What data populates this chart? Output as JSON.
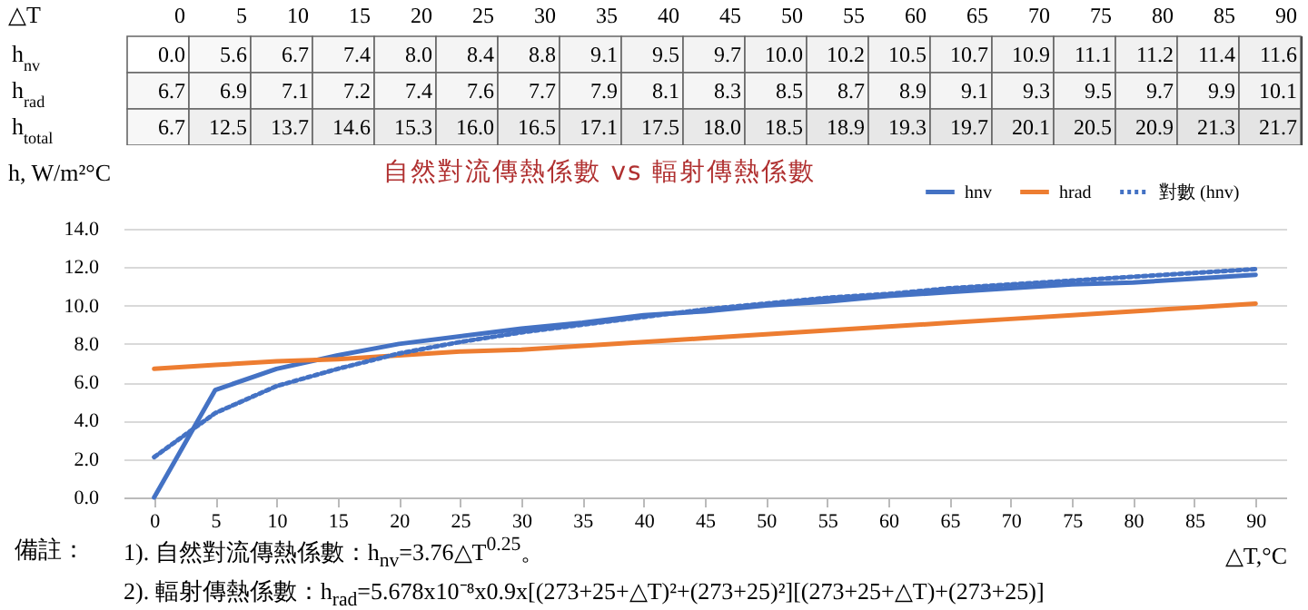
{
  "chart_data": [
    {
      "type": "heatmap",
      "xlabel": "△T",
      "data_labels": true,
      "categories": [
        "0",
        "5",
        "10",
        "15",
        "20",
        "25",
        "30",
        "35",
        "40",
        "45",
        "50",
        "55",
        "60",
        "65",
        "70",
        "75",
        "80",
        "85",
        "90"
      ],
      "y_categories": [
        "h$_{nv}$",
        "h$_{rad}$",
        "h$_{total}$"
      ],
      "cells": [
        [
          0.0,
          5.6,
          6.7,
          7.4,
          8.0,
          8.4,
          8.8,
          9.1,
          9.5,
          9.7,
          10.0,
          10.2,
          10.5,
          10.7,
          10.9,
          11.1,
          11.2,
          11.4,
          11.6
        ],
        [
          6.7,
          6.9,
          7.1,
          7.2,
          7.4,
          7.6,
          7.7,
          7.9,
          8.1,
          8.3,
          8.5,
          8.7,
          8.9,
          9.1,
          9.3,
          9.5,
          9.7,
          9.9,
          10.1
        ],
        [
          6.7,
          12.5,
          13.7,
          14.6,
          15.3,
          16.0,
          16.5,
          17.1,
          17.5,
          18.0,
          18.5,
          18.9,
          19.3,
          19.7,
          20.1,
          20.5,
          20.9,
          21.3,
          21.7
        ]
      ],
      "cell_labels": [
        [
          "0.0",
          "5.6",
          "6.7",
          "7.4",
          "8.0",
          "8.4",
          "8.8",
          "9.1",
          "9.5",
          "9.7",
          "10.0",
          "10.2",
          "10.5",
          "10.7",
          "10.9",
          "11.1",
          "11.2",
          "11.4",
          "11.6"
        ],
        [
          "6.7",
          "6.9",
          "7.1",
          "7.2",
          "7.4",
          "7.6",
          "7.7",
          "7.9",
          "8.1",
          "8.3",
          "8.5",
          "8.7",
          "8.9",
          "9.1",
          "9.3",
          "9.5",
          "9.7",
          "9.9",
          "10.1"
        ],
        [
          "6.7",
          "12.5",
          "13.7",
          "14.6",
          "15.3",
          "16.0",
          "16.5",
          "17.1",
          "17.5",
          "18.0",
          "18.5",
          "18.9",
          "19.3",
          "19.7",
          "20.1",
          "20.5",
          "20.9",
          "21.3",
          "21.7"
        ]
      ]
    },
    {
      "type": "line",
      "title": "自然對流傳熱係數 vs 輻射傳熱係數",
      "xlabel": "△T,°C",
      "ylabel": "h, W/m²°C",
      "categories": [
        "0",
        "5",
        "10",
        "15",
        "20",
        "25",
        "30",
        "35",
        "40",
        "45",
        "50",
        "55",
        "60",
        "65",
        "70",
        "75",
        "80",
        "85",
        "90"
      ],
      "ylim": [
        0,
        14
      ],
      "yticks": [
        {
          "value": 0,
          "label": "0.0"
        },
        {
          "value": 2,
          "label": "2.0"
        },
        {
          "value": 4,
          "label": "4.0"
        },
        {
          "value": 6,
          "label": "6.0"
        },
        {
          "value": 8,
          "label": "8.0"
        },
        {
          "value": 10,
          "label": "10.0"
        },
        {
          "value": 12,
          "label": "12.0"
        },
        {
          "value": 14,
          "label": "14.0"
        }
      ],
      "grid": "y",
      "legend": "top right",
      "series": [
        {
          "name": "hnv",
          "color": "#4472c4",
          "values": [
            0.0,
            5.6,
            6.7,
            7.4,
            8.0,
            8.4,
            8.8,
            9.1,
            9.5,
            9.7,
            10.0,
            10.2,
            10.5,
            10.7,
            10.9,
            11.1,
            11.2,
            11.4,
            11.6
          ]
        },
        {
          "name": "hrad",
          "color": "#ed7d31",
          "values": [
            6.7,
            6.9,
            7.1,
            7.2,
            7.4,
            7.6,
            7.7,
            7.9,
            8.1,
            8.3,
            8.5,
            8.7,
            8.9,
            9.1,
            9.3,
            9.5,
            9.7,
            9.9,
            10.1
          ]
        },
        {
          "name": "對數 (hnv)",
          "color": "#4472c4",
          "line_style": "dotted",
          "values": [
            2.1,
            4.4,
            5.8,
            6.7,
            7.5,
            8.1,
            8.6,
            9.0,
            9.4,
            9.8,
            10.1,
            10.4,
            10.6,
            10.9,
            11.1,
            11.3,
            11.5,
            11.7,
            11.9
          ]
        }
      ],
      "annotations": [
        "備註：",
        "1). 自然對流傳熱係數：h$_{nv}$=3.76△T$^{0.25}$。",
        "2). 輻射傳熱係數：h$_{rad}$=5.678x10⁻⁸x0.9x[(273+25+△T)²+(273+25)²][(273+25+△T)+(273+25)]"
      ]
    }
  ]
}
